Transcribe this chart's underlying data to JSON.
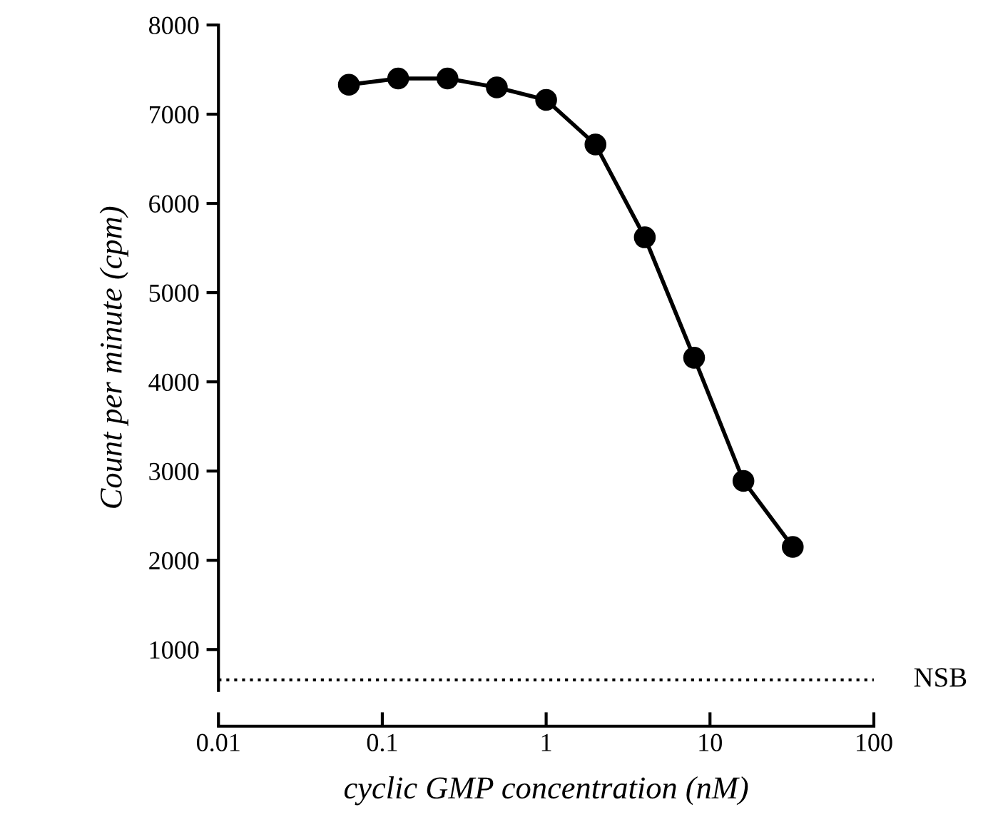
{
  "chart_data": {
    "type": "line",
    "xlabel": "cyclic GMP concentration (nM)",
    "ylabel": "Count per minute (cpm)",
    "x": [
      0.0625,
      0.125,
      0.25,
      0.5,
      1,
      2,
      4,
      8,
      16,
      32
    ],
    "series": [
      {
        "color": "#000000",
        "values": [
          7330,
          7400,
          7400,
          7300,
          7160,
          6660,
          5620,
          4270,
          2890,
          2150
        ]
      }
    ],
    "marker": "circle",
    "line_style": "solid",
    "log": "x",
    "grid": false,
    "legend": false,
    "xlim": [
      0.01,
      100
    ],
    "xticks": [
      0.01,
      0.1,
      1,
      10,
      100
    ],
    "ylim": [
      540,
      8000
    ],
    "yticks": [
      1000,
      2000,
      3000,
      4000,
      5000,
      6000,
      7000,
      8000
    ],
    "ref_lines": [
      {
        "axis": "y",
        "value": 660,
        "label": "NSB",
        "color": "#000000",
        "line_style": "dotted"
      }
    ]
  }
}
